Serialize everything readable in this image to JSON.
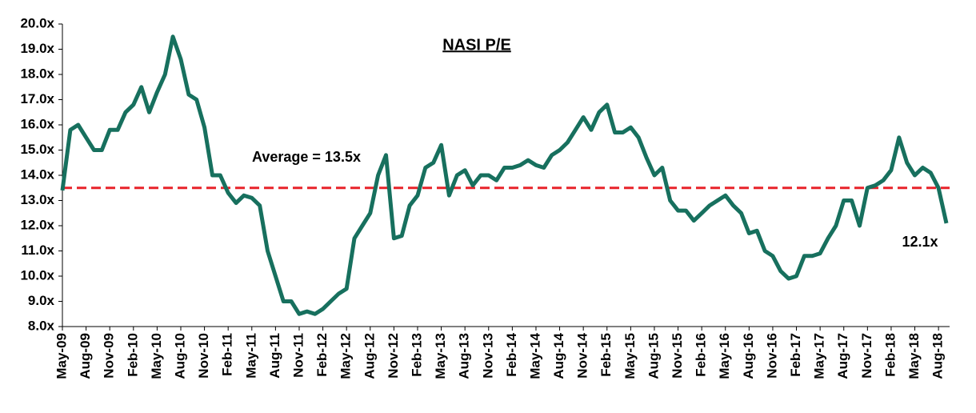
{
  "chart_data": {
    "type": "line",
    "title": "NASI P/E",
    "categories": [
      "May-09",
      null,
      null,
      "Aug-09",
      null,
      null,
      "Nov-09",
      null,
      null,
      "Feb-10",
      null,
      null,
      "May-10",
      null,
      null,
      "Aug-10",
      null,
      null,
      "Nov-10",
      null,
      null,
      "Feb-11",
      null,
      null,
      "May-11",
      null,
      null,
      "Aug-11",
      null,
      null,
      "Nov-11",
      null,
      null,
      "Feb-12",
      null,
      null,
      "May-12",
      null,
      null,
      "Aug-12",
      null,
      null,
      "Nov-12",
      null,
      null,
      "Feb-13",
      null,
      null,
      "May-13",
      null,
      null,
      "Aug-13",
      null,
      null,
      "Nov-13",
      null,
      null,
      "Feb-14",
      null,
      null,
      "May-14",
      null,
      null,
      "Aug-14",
      null,
      null,
      "Nov-14",
      null,
      null,
      "Feb-15",
      null,
      null,
      "May-15",
      null,
      null,
      "Aug-15",
      null,
      null,
      "Nov-15",
      null,
      null,
      "Feb-16",
      null,
      null,
      "May-16",
      null,
      null,
      "Aug-16",
      null,
      null,
      "Nov-16",
      null,
      null,
      "Feb-17",
      null,
      null,
      "May-17",
      null,
      null,
      "Aug-17",
      null,
      null,
      "Nov-17",
      null,
      null,
      "Feb-18",
      null,
      null,
      "May-18",
      null,
      null,
      "Aug-18",
      null
    ],
    "series": [
      {
        "name": "NASI P/E",
        "color": "#17705e",
        "values": [
          13.4,
          15.8,
          16.0,
          15.5,
          15.0,
          15.0,
          15.8,
          15.8,
          16.5,
          16.8,
          17.5,
          16.5,
          17.3,
          18.0,
          19.5,
          18.6,
          17.2,
          17.0,
          15.9,
          14.0,
          14.0,
          13.3,
          12.9,
          13.2,
          13.1,
          12.8,
          11.0,
          10.0,
          9.0,
          9.0,
          8.5,
          8.6,
          8.5,
          8.7,
          9.0,
          9.3,
          9.5,
          11.5,
          12.0,
          12.5,
          14.0,
          14.8,
          11.5,
          11.6,
          12.8,
          13.2,
          14.3,
          14.5,
          15.2,
          13.2,
          14.0,
          14.2,
          13.6,
          14.0,
          14.0,
          13.8,
          14.3,
          14.3,
          14.4,
          14.6,
          14.4,
          14.3,
          14.8,
          15.0,
          15.3,
          15.8,
          16.3,
          15.8,
          16.5,
          16.8,
          15.7,
          15.7,
          15.9,
          15.5,
          14.7,
          14.0,
          14.3,
          13.0,
          12.6,
          12.6,
          12.2,
          12.5,
          12.8,
          13.0,
          13.2,
          12.8,
          12.5,
          11.7,
          11.8,
          11.0,
          10.8,
          10.2,
          9.9,
          10.0,
          10.8,
          10.8,
          10.9,
          11.5,
          12.0,
          13.0,
          13.0,
          12.0,
          13.5,
          13.6,
          13.8,
          14.2,
          15.5,
          14.5,
          14.0,
          14.3,
          14.1,
          13.5,
          12.1
        ]
      }
    ],
    "average": 13.5,
    "average_color": "#e8232a",
    "annotations": [
      "Average = 13.5x",
      "12.1x"
    ],
    "ylim": [
      8,
      20
    ],
    "yticks": [
      {
        "value": 8,
        "label": "8.0x"
      },
      {
        "value": 9,
        "label": "9.0x"
      },
      {
        "value": 10,
        "label": "10.0x"
      },
      {
        "value": 11,
        "label": "11.0x"
      },
      {
        "value": 12,
        "label": "12.0x"
      },
      {
        "value": 13,
        "label": "13.0x"
      },
      {
        "value": 14,
        "label": "14.0x"
      },
      {
        "value": 15,
        "label": "15.0x"
      },
      {
        "value": 16,
        "label": "16.0x"
      },
      {
        "value": 17,
        "label": "17.0x"
      },
      {
        "value": 18,
        "label": "18.0x"
      },
      {
        "value": 19,
        "label": "19.0x"
      },
      {
        "value": 20,
        "label": "20.0x"
      }
    ]
  }
}
